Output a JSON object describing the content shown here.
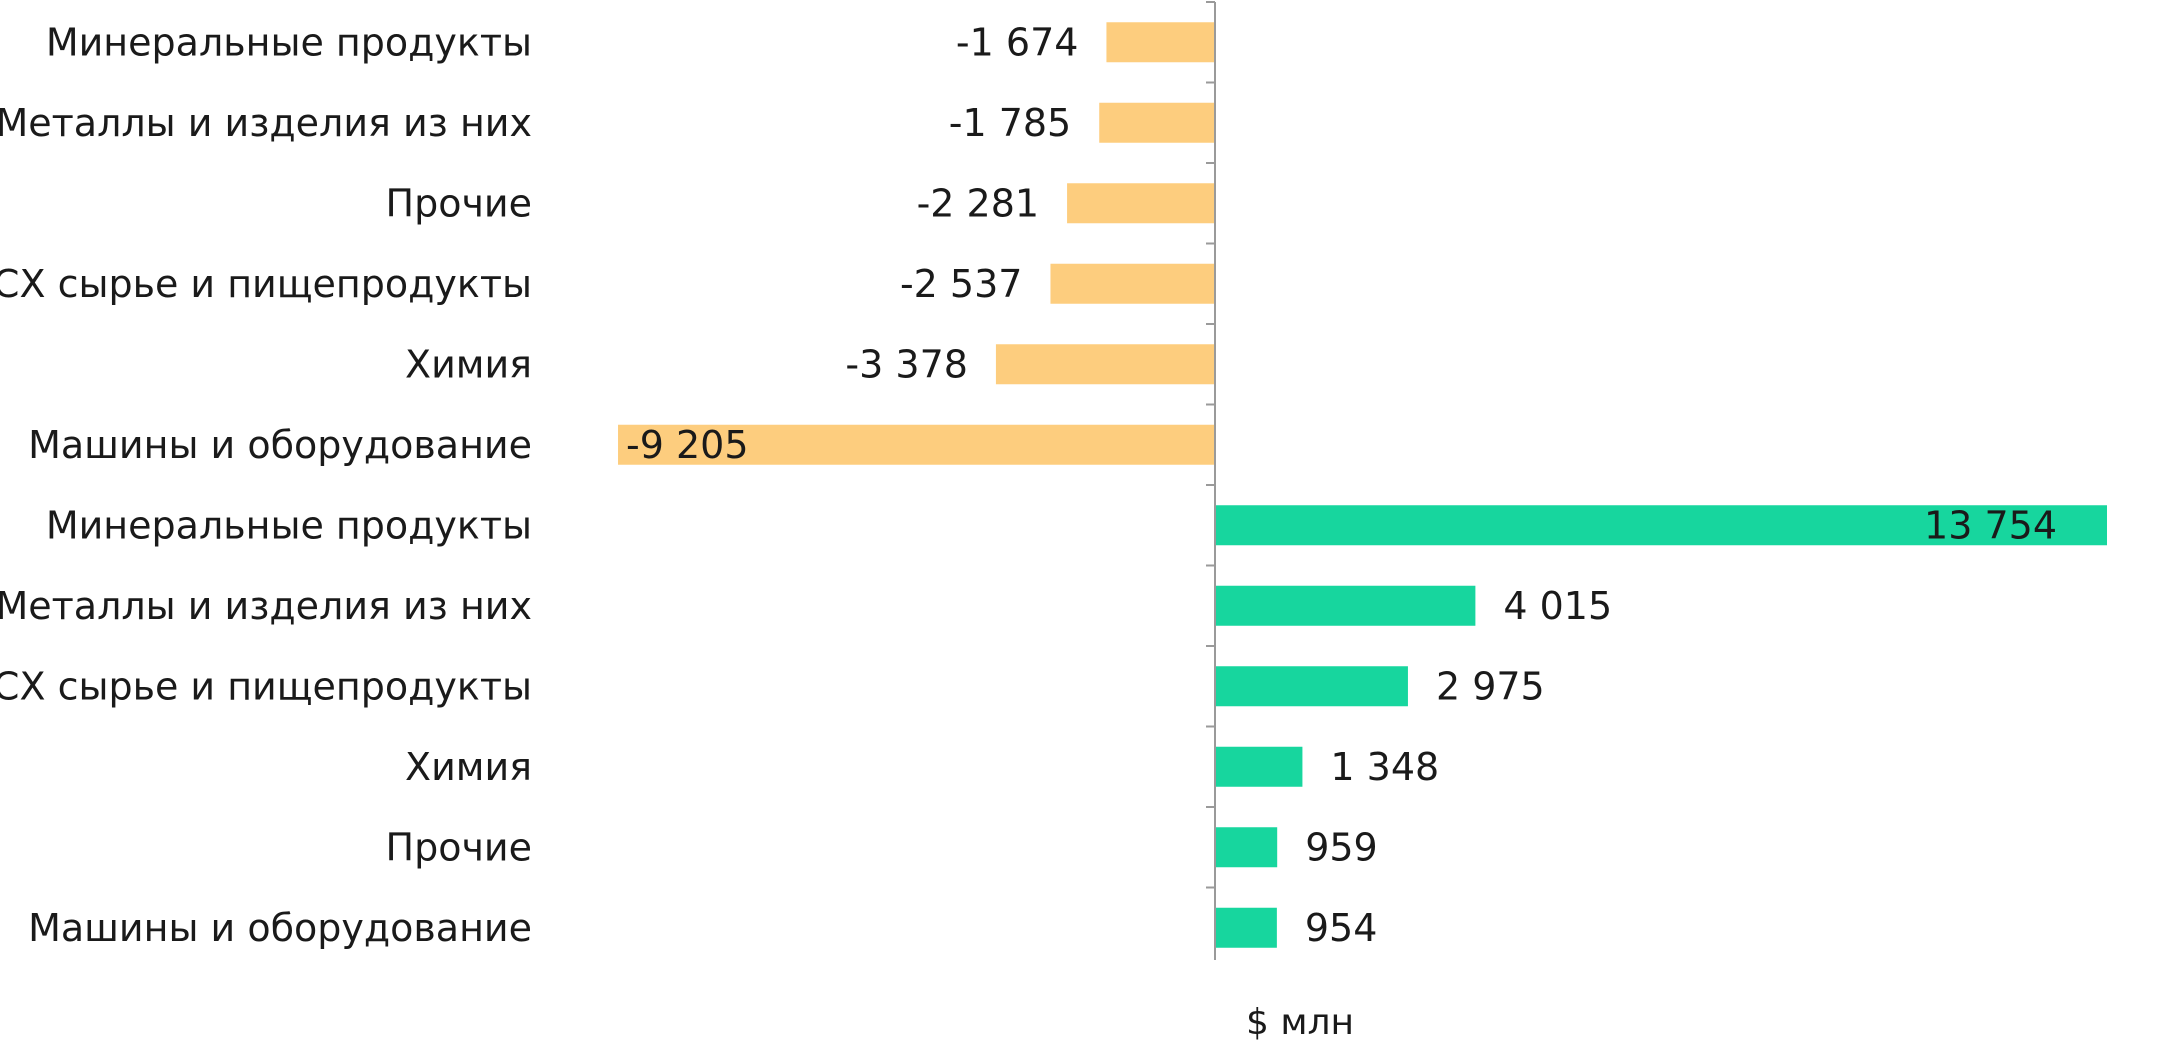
{
  "chart_data": {
    "type": "bar",
    "orientation": "horizontal",
    "unit_label": "$ млн",
    "categories": [
      "Минеральные продукты",
      "Металлы и изделия из них",
      "Прочие",
      "СХ сырье и пищепродукты",
      "Химия",
      "Машины и оборудование",
      "Минеральные продукты",
      "Металлы и изделия из них",
      "СХ сырье и пищепродукты",
      "Химия",
      "Прочие",
      "Машины и оборудование"
    ],
    "values": [
      -1674,
      -1785,
      -2281,
      -2537,
      -3378,
      -9205,
      13754,
      4015,
      2975,
      1348,
      959,
      954
    ],
    "value_labels": [
      "-1 674",
      "-1 785",
      "-2 281",
      "-2 537",
      "-3 378",
      "-9 205",
      "13 754",
      "4 015",
      "2 975",
      "1 348",
      "959",
      "954"
    ],
    "colors": {
      "negative": "#FDCD7E",
      "positive": "#17D69E",
      "axis": "#9a9a9a"
    },
    "xlim": [
      -9205,
      13754
    ],
    "grid": false,
    "legend": "none"
  }
}
